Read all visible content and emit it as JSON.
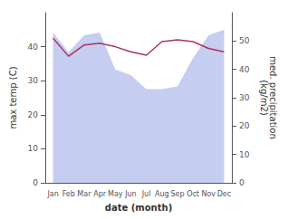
{
  "chart_data": {
    "type": "line",
    "categories": [
      "Jan",
      "Feb",
      "Mar",
      "Apr",
      "May",
      "Jun",
      "Jul",
      "Aug",
      "Sep",
      "Oct",
      "Nov",
      "Dec"
    ],
    "xlabel": "date (month)",
    "ylabel": "max temp (C)",
    "y2label": "med. precipitation\n(kg/m2)",
    "ylim": [
      0,
      50
    ],
    "yticks": [
      0,
      10,
      20,
      30,
      40
    ],
    "y2lim": [
      0,
      60
    ],
    "y2ticks": [
      0,
      10,
      20,
      30,
      40,
      50
    ],
    "grid": false,
    "series": [
      {
        "type": "area",
        "axis": "y2",
        "color": "#c5cdf0",
        "values": [
          53,
          46,
          52,
          53,
          40,
          38,
          33,
          33,
          34,
          44,
          52,
          54
        ]
      },
      {
        "type": "line",
        "color": "#b03060",
        "values": [
          42.5,
          37.2,
          40.5,
          41.0,
          40.0,
          38.5,
          37.5,
          41.5,
          42.0,
          41.5,
          39.5,
          38.5
        ]
      }
    ]
  }
}
